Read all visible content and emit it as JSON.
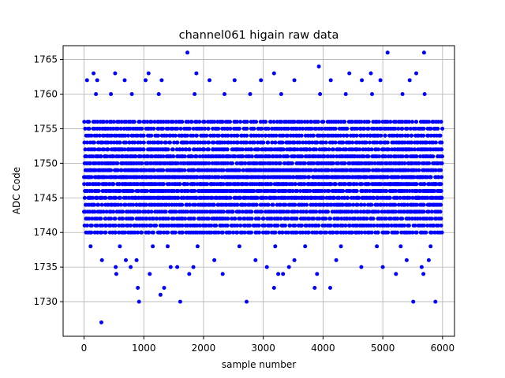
{
  "chart_data": {
    "type": "scatter",
    "title": "channel061 higain raw data",
    "xlabel": "sample number",
    "ylabel": "ADC Code",
    "xlim": [
      -350,
      6200
    ],
    "ylim": [
      1725,
      1767
    ],
    "xticks": [
      0,
      1000,
      2000,
      3000,
      4000,
      5000,
      6000
    ],
    "yticks": [
      1730,
      1735,
      1740,
      1745,
      1750,
      1755,
      1760,
      1765
    ],
    "xtick_labels": [
      "0",
      "1000",
      "2000",
      "3000",
      "4000",
      "5000",
      "6000"
    ],
    "ytick_labels": [
      "1730",
      "1735",
      "1740",
      "1745",
      "1750",
      "1755",
      "1760",
      "1765"
    ],
    "grid": true,
    "marker_color": "#0000ff",
    "series": [
      {
        "name": "",
        "n_samples": 6000,
        "x_range": [
          0,
          5999
        ],
        "core_range": [
          1740,
          1756
        ],
        "points": [
          [
            290,
            1727
          ],
          [
            920,
            1730
          ],
          [
            1610,
            1730
          ],
          [
            2720,
            1730
          ],
          [
            5510,
            1730
          ],
          [
            5880,
            1730
          ],
          [
            1280,
            1731
          ],
          [
            900,
            1732
          ],
          [
            1340,
            1732
          ],
          [
            3180,
            1732
          ],
          [
            3860,
            1732
          ],
          [
            4120,
            1732
          ],
          [
            540,
            1734
          ],
          [
            1100,
            1734
          ],
          [
            1760,
            1734
          ],
          [
            2320,
            1734
          ],
          [
            3250,
            1734
          ],
          [
            3330,
            1734
          ],
          [
            3900,
            1734
          ],
          [
            5220,
            1734
          ],
          [
            5680,
            1734
          ],
          [
            530,
            1735
          ],
          [
            780,
            1735
          ],
          [
            1450,
            1735
          ],
          [
            1560,
            1735
          ],
          [
            1830,
            1735
          ],
          [
            3060,
            1735
          ],
          [
            3430,
            1735
          ],
          [
            4640,
            1735
          ],
          [
            5000,
            1735
          ],
          [
            5650,
            1735
          ],
          [
            300,
            1736
          ],
          [
            700,
            1736
          ],
          [
            880,
            1736
          ],
          [
            2180,
            1736
          ],
          [
            2870,
            1736
          ],
          [
            3520,
            1736
          ],
          [
            4220,
            1736
          ],
          [
            5400,
            1736
          ],
          [
            5770,
            1736
          ],
          [
            110,
            1738
          ],
          [
            600,
            1738
          ],
          [
            1150,
            1738
          ],
          [
            1400,
            1738
          ],
          [
            1900,
            1738
          ],
          [
            2600,
            1738
          ],
          [
            3200,
            1738
          ],
          [
            3700,
            1738
          ],
          [
            4300,
            1738
          ],
          [
            4900,
            1738
          ],
          [
            5300,
            1738
          ],
          [
            5800,
            1738
          ],
          [
            200,
            1760
          ],
          [
            450,
            1760
          ],
          [
            800,
            1760
          ],
          [
            1250,
            1760
          ],
          [
            1850,
            1760
          ],
          [
            2350,
            1760
          ],
          [
            2780,
            1760
          ],
          [
            3300,
            1760
          ],
          [
            3950,
            1760
          ],
          [
            4380,
            1760
          ],
          [
            4820,
            1760
          ],
          [
            5330,
            1760
          ],
          [
            5700,
            1760
          ],
          [
            50,
            1762
          ],
          [
            220,
            1762
          ],
          [
            680,
            1762
          ],
          [
            1030,
            1762
          ],
          [
            1300,
            1762
          ],
          [
            2100,
            1762
          ],
          [
            2520,
            1762
          ],
          [
            2960,
            1762
          ],
          [
            3520,
            1762
          ],
          [
            4130,
            1762
          ],
          [
            4650,
            1762
          ],
          [
            4960,
            1762
          ],
          [
            5450,
            1762
          ],
          [
            160,
            1763
          ],
          [
            520,
            1763
          ],
          [
            1080,
            1763
          ],
          [
            1880,
            1763
          ],
          [
            3180,
            1763
          ],
          [
            4440,
            1763
          ],
          [
            4800,
            1763
          ],
          [
            5560,
            1763
          ],
          [
            3930,
            1764
          ],
          [
            1730,
            1766
          ],
          [
            5080,
            1766
          ],
          [
            5690,
            1766
          ]
        ]
      }
    ]
  }
}
